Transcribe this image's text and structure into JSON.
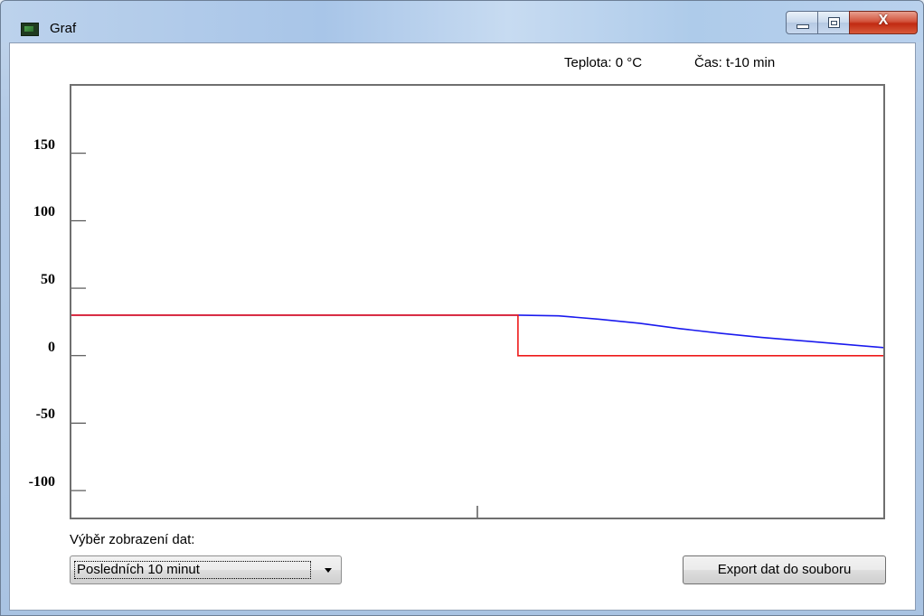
{
  "window": {
    "title": "Graf",
    "close_label": "X"
  },
  "readouts": {
    "temperature": "Teplota: 0 °C",
    "time": "Čas: t-10 min"
  },
  "chart_data": {
    "type": "line",
    "title": "",
    "xlabel": "",
    "ylabel": "",
    "ylim": [
      -120,
      200
    ],
    "xlim": [
      0,
      10
    ],
    "yticks": [
      {
        "value": 150,
        "label": "150"
      },
      {
        "value": 100,
        "label": "100"
      },
      {
        "value": 50,
        "label": "50"
      },
      {
        "value": 0,
        "label": "0"
      },
      {
        "value": -50,
        "label": "-50"
      },
      {
        "value": -100,
        "label": "-100"
      }
    ],
    "xticks": [
      5
    ],
    "grid": false,
    "series": [
      {
        "color": "#1a1aee",
        "points": [
          [
            0,
            30
          ],
          [
            5.5,
            30
          ],
          [
            6,
            29.5
          ],
          [
            6.5,
            27
          ],
          [
            7,
            24
          ],
          [
            7.5,
            20
          ],
          [
            8,
            16.5
          ],
          [
            8.5,
            13.5
          ],
          [
            9,
            11
          ],
          [
            9.5,
            8.5
          ],
          [
            10,
            6
          ]
        ]
      },
      {
        "color": "#ee1a1a",
        "points": [
          [
            0,
            30
          ],
          [
            5.5,
            30
          ],
          [
            5.5,
            0
          ],
          [
            10,
            0
          ]
        ]
      }
    ]
  },
  "controls": {
    "view_label": "Výběr zobrazení dat:",
    "view_selected": "Posledních 10 minut",
    "export_label": "Export dat do souboru"
  }
}
